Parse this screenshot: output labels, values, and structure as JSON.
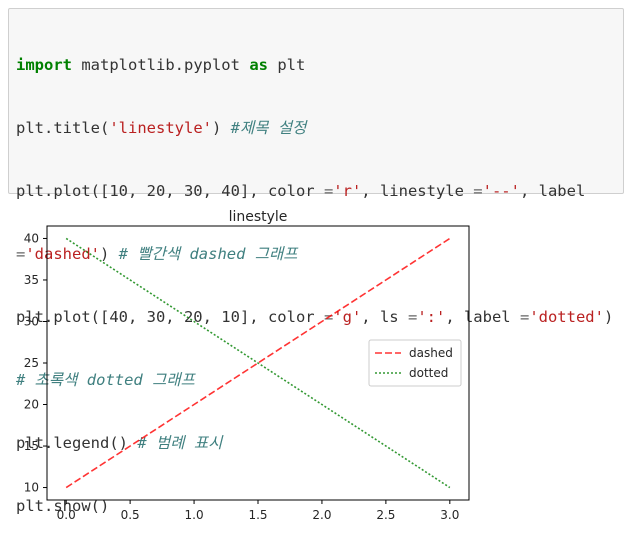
{
  "code_cell": {
    "lines": [
      [
        {
          "t": "kw",
          "v": "import"
        },
        {
          "t": "",
          "v": " matplotlib.pyplot "
        },
        {
          "t": "kw",
          "v": "as"
        },
        {
          "t": "",
          "v": " plt"
        }
      ],
      [
        {
          "t": "",
          "v": "plt.title("
        },
        {
          "t": "str",
          "v": "'linestyle'"
        },
        {
          "t": "",
          "v": ") "
        },
        {
          "t": "cm",
          "v": "#제목 설정"
        }
      ],
      [
        {
          "t": "",
          "v": "plt.plot([10, 20, 30, 40], color "
        },
        {
          "t": "op",
          "v": "="
        },
        {
          "t": "str",
          "v": "'r'"
        },
        {
          "t": "",
          "v": ", linestyle "
        },
        {
          "t": "op",
          "v": "="
        },
        {
          "t": "str",
          "v": "'--'"
        },
        {
          "t": "",
          "v": ", label"
        }
      ],
      [
        {
          "t": "op",
          "v": "="
        },
        {
          "t": "str",
          "v": "'dashed'"
        },
        {
          "t": "",
          "v": ") "
        },
        {
          "t": "cm",
          "v": "# 빨간색 dashed 그래프"
        }
      ],
      [
        {
          "t": "",
          "v": "plt.plot([40, 30, 20, 10], color "
        },
        {
          "t": "op",
          "v": "="
        },
        {
          "t": "str",
          "v": "'g'"
        },
        {
          "t": "",
          "v": ", ls "
        },
        {
          "t": "op",
          "v": "="
        },
        {
          "t": "str",
          "v": "':'"
        },
        {
          "t": "",
          "v": ", label "
        },
        {
          "t": "op",
          "v": "="
        },
        {
          "t": "str",
          "v": "'dotted'"
        },
        {
          "t": "",
          "v": ")"
        }
      ],
      [
        {
          "t": "cm",
          "v": "# 초록색 dotted 그래프"
        }
      ],
      [
        {
          "t": "",
          "v": "plt.legend() "
        },
        {
          "t": "cm",
          "v": "# 범례 표시"
        }
      ],
      [
        {
          "t": "",
          "v": "plt.show()"
        }
      ]
    ]
  },
  "chart_data": {
    "type": "line",
    "title": "linestyle",
    "xlabel": "",
    "ylabel": "",
    "x": [
      0,
      1,
      2,
      3
    ],
    "xlim": [
      -0.15,
      3.15
    ],
    "ylim": [
      8.5,
      41.5
    ],
    "xticks": [
      "0.0",
      "0.5",
      "1.0",
      "1.5",
      "2.0",
      "2.5",
      "3.0"
    ],
    "yticks": [
      "10",
      "15",
      "20",
      "25",
      "30",
      "35",
      "40"
    ],
    "series": [
      {
        "name": "dashed",
        "values": [
          10,
          20,
          30,
          40
        ],
        "color": "#ff0000",
        "linestyle": "dashed"
      },
      {
        "name": "dotted",
        "values": [
          40,
          30,
          20,
          10
        ],
        "color": "#008000",
        "linestyle": "dotted"
      }
    ],
    "legend_position": "center-right",
    "grid": false
  }
}
